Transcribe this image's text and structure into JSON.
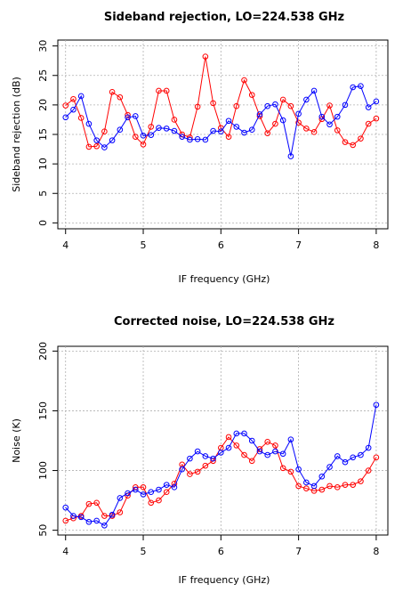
{
  "chart_data": [
    {
      "type": "line",
      "title": "Sideband rejection, LO=224.538 GHz",
      "xlabel": "IF frequency (GHz)",
      "ylabel": "Sideband rejection (dB)",
      "xlim": [
        3.9,
        8.15
      ],
      "ylim": [
        -1,
        31
      ],
      "xticks": [
        4,
        5,
        6,
        7,
        8
      ],
      "yticks": [
        0,
        5,
        10,
        15,
        20,
        25,
        30
      ],
      "grid": true,
      "x": [
        4.0,
        4.1,
        4.2,
        4.3,
        4.4,
        4.5,
        4.6,
        4.7,
        4.8,
        4.9,
        5.0,
        5.1,
        5.2,
        5.3,
        5.4,
        5.5,
        5.6,
        5.7,
        5.8,
        5.9,
        6.0,
        6.1,
        6.2,
        6.3,
        6.4,
        6.5,
        6.6,
        6.7,
        6.8,
        6.9,
        7.0,
        7.1,
        7.2,
        7.3,
        7.4,
        7.5,
        7.6,
        7.7,
        7.8,
        7.9,
        8.0
      ],
      "series": [
        {
          "color": "#ff0000",
          "values": [
            19.9,
            21.0,
            17.8,
            12.9,
            13.0,
            15.5,
            22.2,
            21.3,
            18.3,
            14.6,
            13.3,
            16.3,
            22.4,
            22.4,
            17.5,
            15.0,
            14.5,
            19.7,
            28.2,
            20.3,
            16.1,
            14.6,
            19.8,
            24.2,
            21.7,
            18.1,
            15.2,
            16.8,
            20.9,
            19.8,
            17.0,
            16.0,
            15.4,
            17.6,
            19.9,
            15.7,
            13.7,
            13.2,
            14.3,
            16.8,
            17.7
          ]
        },
        {
          "color": "#0000ff",
          "values": [
            17.9,
            19.2,
            21.5,
            16.8,
            14.0,
            12.8,
            14.0,
            15.8,
            17.9,
            18.1,
            14.8,
            14.9,
            16.1,
            16.0,
            15.6,
            14.6,
            14.1,
            14.2,
            14.1,
            15.6,
            15.5,
            17.3,
            16.3,
            15.3,
            15.8,
            18.4,
            19.8,
            20.1,
            17.4,
            11.3,
            18.5,
            20.9,
            22.4,
            18.0,
            16.7,
            18.0,
            20.0,
            23.0,
            23.2,
            19.6,
            20.6
          ]
        }
      ]
    },
    {
      "type": "line",
      "title": "Corrected noise, LO=224.538 GHz",
      "xlabel": "IF frequency (GHz)",
      "ylabel": "Noise (K)",
      "xlim": [
        3.9,
        8.15
      ],
      "ylim": [
        46,
        204
      ],
      "xticks": [
        4,
        5,
        6,
        7,
        8
      ],
      "yticks": [
        50,
        100,
        150,
        200
      ],
      "grid": true,
      "x": [
        4.0,
        4.1,
        4.2,
        4.3,
        4.4,
        4.5,
        4.6,
        4.7,
        4.8,
        4.9,
        5.0,
        5.1,
        5.2,
        5.3,
        5.4,
        5.5,
        5.6,
        5.7,
        5.8,
        5.9,
        6.0,
        6.1,
        6.2,
        6.3,
        6.4,
        6.5,
        6.6,
        6.7,
        6.8,
        6.9,
        7.0,
        7.1,
        7.2,
        7.3,
        7.4,
        7.5,
        7.6,
        7.7,
        7.8,
        7.9,
        8.0
      ],
      "series": [
        {
          "color": "#ff0000",
          "values": [
            58,
            60,
            62,
            72,
            73,
            62,
            62,
            65,
            79,
            86,
            86,
            73,
            75,
            82,
            89,
            105,
            97,
            99,
            104,
            108,
            119,
            128,
            121,
            113,
            108,
            118,
            124,
            121,
            102,
            99,
            87,
            85,
            83,
            84,
            87,
            86,
            88,
            88,
            91,
            100,
            111
          ]
        },
        {
          "color": "#0000ff",
          "values": [
            69,
            62,
            61,
            57,
            58,
            54,
            63,
            77,
            81,
            84,
            80,
            82,
            84,
            88,
            86,
            101,
            110,
            116,
            112,
            110,
            115,
            119,
            131,
            131,
            125,
            116,
            113,
            116,
            114,
            126,
            101,
            90,
            87,
            95,
            103,
            112,
            107,
            111,
            113,
            119,
            155
          ]
        }
      ]
    }
  ]
}
